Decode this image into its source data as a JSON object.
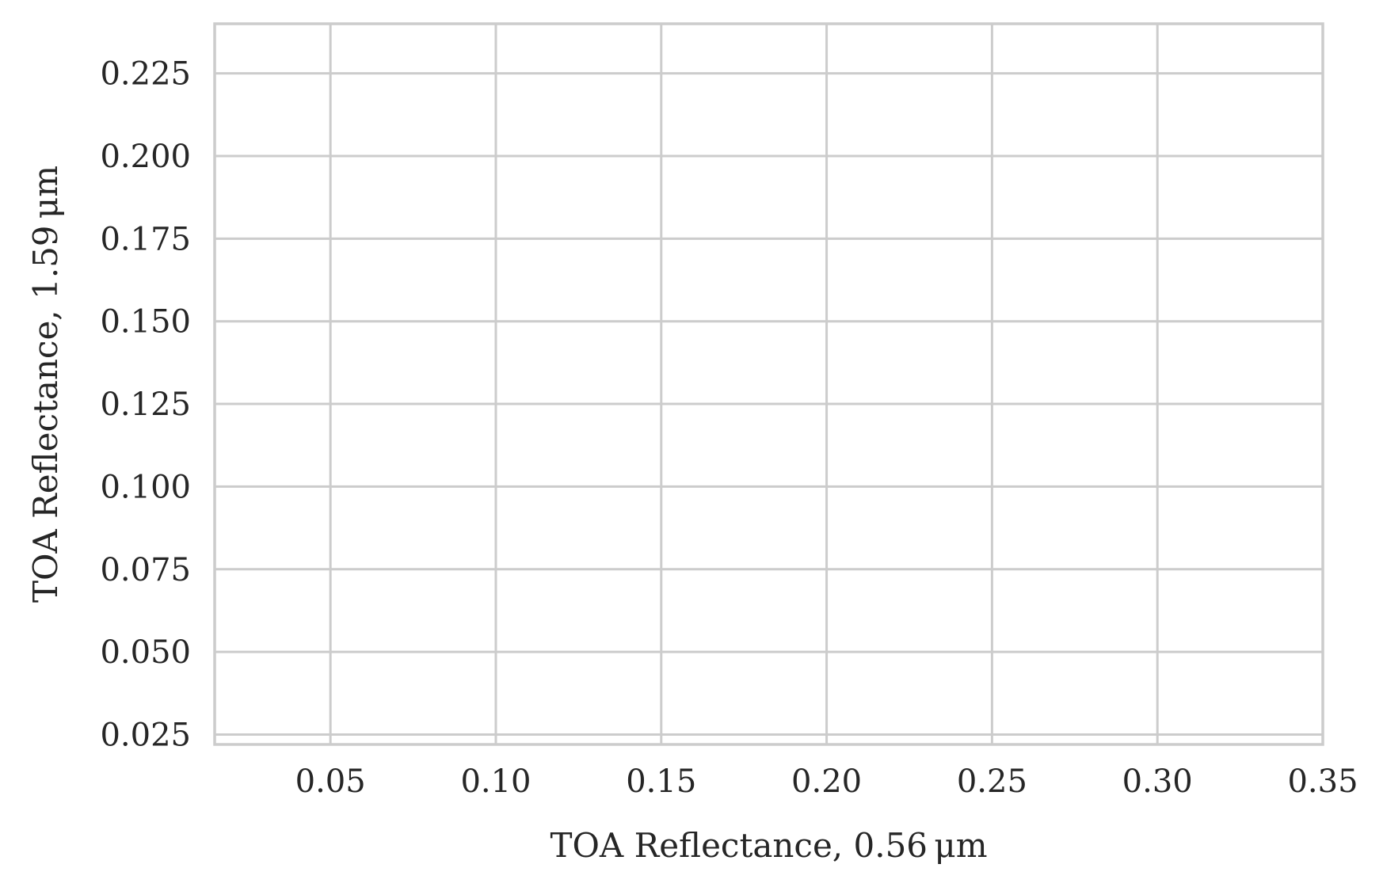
{
  "chart_data": {
    "type": "scatter",
    "title": "",
    "xlabel": "TOA Reflectance, 0.56 μm",
    "ylabel": "TOA Reflectance, 1.59 μm",
    "xlim": [
      0.015,
      0.35
    ],
    "ylim": [
      0.022,
      0.24
    ],
    "xticks": [
      0.05,
      0.1,
      0.15,
      0.2,
      0.25,
      0.3,
      0.35
    ],
    "yticks": [
      0.025,
      0.05,
      0.075,
      0.1,
      0.125,
      0.15,
      0.175,
      0.2,
      0.225
    ],
    "xtick_labels": [
      "0.05",
      "0.10",
      "0.15",
      "0.20",
      "0.25",
      "0.30",
      "0.35"
    ],
    "ytick_labels": [
      "0.025",
      "0.050",
      "0.075",
      "0.100",
      "0.125",
      "0.150",
      "0.175",
      "0.200",
      "0.225"
    ],
    "grid": true,
    "series": [],
    "colors": {
      "grid": "#cccccc",
      "frame": "#cccccc",
      "text": "#262626",
      "background": "#ffffff"
    }
  }
}
